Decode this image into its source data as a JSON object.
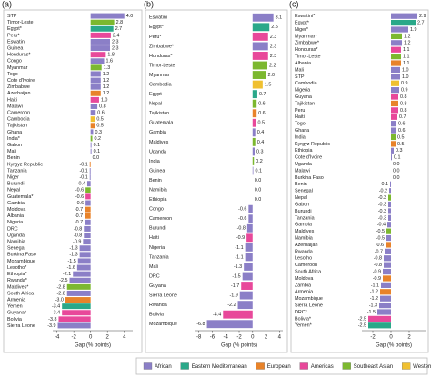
{
  "chart_data": [
    {
      "type": "bar",
      "orientation": "horizontal",
      "panel": "(a)",
      "x_label": "Gap (% points)",
      "categories": [
        "STP",
        "Timor-Leste",
        "Egypt*",
        "Peru*",
        "Eswatini",
        "Guinea",
        "Honduras*",
        "Congo",
        "Myanmar",
        "Togo",
        "Cote d'Ivoire",
        "Zimbabwe",
        "Azerbaijan",
        "Haiti",
        "Malawi",
        "Cameroon",
        "Cambodia",
        "Tajikistan",
        "Ghana",
        "India*",
        "Gabon",
        "Mali",
        "Benin",
        "Kyrgyz Republic",
        "Tanzania",
        "Niger",
        "Burundi",
        "Nepal",
        "Guatemala*",
        "Gambia",
        "Moldova",
        "Albania",
        "Nigeria",
        "DRC",
        "Uganda",
        "Namibia",
        "Senegal",
        "Burkina Faso",
        "Mozambique",
        "Lesotho*",
        "Ethiopia*",
        "Rwanda*",
        "Maldives*",
        "South Africa",
        "Armenia",
        "Yemen",
        "Guyana*",
        "Bolivia",
        "Sierra Leone"
      ],
      "values": [
        4,
        2.8,
        2.7,
        2.4,
        2.3,
        2.3,
        1.8,
        1.6,
        1.3,
        1.2,
        1.2,
        1.2,
        1.2,
        1,
        0.8,
        0.6,
        0.5,
        0.5,
        0.3,
        0.2,
        0.1,
        0.1,
        0,
        -0.1,
        -0.1,
        -0.1,
        -0.4,
        -0.6,
        -0.6,
        -0.6,
        -0.7,
        -0.7,
        -0.7,
        -0.8,
        -0.8,
        -0.9,
        -1.3,
        -1.3,
        -1.5,
        -1.6,
        -2.1,
        -2.5,
        -2.8,
        -2.8,
        -3,
        -3.4,
        -3.4,
        -3.8,
        -3.9
      ],
      "value_labels": [
        "4.0",
        "2.8",
        "2.7",
        "2.4",
        "2.3",
        "2.3",
        "1.8",
        "1.6",
        "1.3",
        "1.2",
        "1.2",
        "1.2",
        "1.2",
        "1.0",
        "0.8",
        "0.6",
        "0.5",
        "0.5",
        "0.3",
        "0.2",
        "0.1",
        "0.1",
        "0.0",
        "-0.1",
        "-0.1",
        "-0.1",
        "-0.4",
        "-0.6",
        "-0.6",
        "-0.6",
        "-0.7",
        "-0.7",
        "-0.7",
        "-0.8",
        "-0.8",
        "-0.9",
        "-1.3",
        "-1.3",
        "-1.5",
        "-1.6",
        "-2.1",
        "-2.5",
        "-2.8",
        "-2.8",
        "-3.0",
        "-3.4",
        "-3.4",
        "-3.8",
        "-3.9"
      ],
      "colors": [
        "#8b7fc7",
        "#7cb82f",
        "#2aa889",
        "#e8489a",
        "#8b7fc7",
        "#8b7fc7",
        "#e8489a",
        "#8b7fc7",
        "#7cb82f",
        "#8b7fc7",
        "#8b7fc7",
        "#8b7fc7",
        "#e8832a",
        "#e8489a",
        "#8b7fc7",
        "#8b7fc7",
        "#f0c030",
        "#e8832a",
        "#8b7fc7",
        "#7cb82f",
        "#8b7fc7",
        "#8b7fc7",
        "#8b7fc7",
        "#e8832a",
        "#8b7fc7",
        "#8b7fc7",
        "#8b7fc7",
        "#7cb82f",
        "#e8489a",
        "#8b7fc7",
        "#e8832a",
        "#e8832a",
        "#8b7fc7",
        "#8b7fc7",
        "#8b7fc7",
        "#8b7fc7",
        "#8b7fc7",
        "#8b7fc7",
        "#8b7fc7",
        "#8b7fc7",
        "#8b7fc7",
        "#8b7fc7",
        "#7cb82f",
        "#8b7fc7",
        "#e8832a",
        "#2aa889",
        "#e8489a",
        "#e8489a",
        "#8b7fc7"
      ],
      "xlim": [
        -4.5,
        5
      ],
      "xticks": [
        -4,
        -2,
        0,
        2,
        4
      ]
    },
    {
      "type": "bar",
      "orientation": "horizontal",
      "panel": "(b)",
      "x_label": "Gap (% points)",
      "categories": [
        "Eswatini",
        "Egypt*",
        "Peru*",
        "Zimbabwe*",
        "Honduras*",
        "Timor-Leste",
        "Myanmar",
        "Cambodia",
        "Egypt",
        "Nepal",
        "Tajikistan",
        "Guatemala",
        "Gambia",
        "Maldives",
        "Uganda",
        "India",
        "Guinea",
        "Benin",
        "Namibia",
        "Ethiopia",
        "Congo",
        "Cameroon",
        "Burundi",
        "Haiti",
        "Nigeria",
        "Tanzania",
        "Mali",
        "DRC",
        "Guyana",
        "Sierra Leone",
        "Rwanda",
        "Bolivia",
        "Mozambique"
      ],
      "values": [
        3.1,
        2.5,
        2.3,
        2.3,
        2.3,
        2.2,
        2,
        1.5,
        0.7,
        0.6,
        0.6,
        0.5,
        0.4,
        0.4,
        0.3,
        0.2,
        0.1,
        0,
        0,
        0,
        -0.6,
        -0.6,
        -0.8,
        -0.9,
        -1.1,
        -1.1,
        -1.3,
        -1.5,
        -1.7,
        -1.9,
        -2.2,
        -4.4,
        -6.8
      ],
      "value_labels": [
        "3.1",
        "2.5",
        "2.3",
        "2.3",
        "2.3",
        "2.2",
        "2.0",
        "1.5",
        "0.7",
        "0.6",
        "0.6",
        "0.5",
        "0.4",
        "0.4",
        "0.3",
        "0.2",
        "0.1",
        "0.0",
        "0.0",
        "0.0",
        "-0.6",
        "-0.6",
        "-0.8",
        "-0.9",
        "-1.1",
        "-1.1",
        "-1.3",
        "-1.5",
        "-1.7",
        "-1.9",
        "-2.2",
        "-4.4",
        "-6.8"
      ],
      "colors": [
        "#8b7fc7",
        "#2aa889",
        "#e8489a",
        "#8b7fc7",
        "#e8489a",
        "#7cb82f",
        "#7cb82f",
        "#f0c030",
        "#2aa889",
        "#7cb82f",
        "#e8832a",
        "#e8489a",
        "#8b7fc7",
        "#7cb82f",
        "#8b7fc7",
        "#7cb82f",
        "#8b7fc7",
        "#8b7fc7",
        "#8b7fc7",
        "#8b7fc7",
        "#8b7fc7",
        "#8b7fc7",
        "#8b7fc7",
        "#e8489a",
        "#8b7fc7",
        "#8b7fc7",
        "#8b7fc7",
        "#8b7fc7",
        "#e8489a",
        "#8b7fc7",
        "#8b7fc7",
        "#e8489a",
        "#8b7fc7"
      ],
      "xlim": [
        -8.5,
        4.5
      ],
      "xticks": [
        -8,
        -6,
        -4,
        -2,
        0,
        2,
        4
      ]
    },
    {
      "type": "bar",
      "orientation": "horizontal",
      "panel": "(c)",
      "x_label": "Gap (% points)",
      "categories": [
        "Eswatini*",
        "Egypt*",
        "Niger*",
        "Myanmar*",
        "Zimbabwe*",
        "Honduras*",
        "Timor-Leste",
        "Albania",
        "Mali",
        "STP",
        "Cambodia",
        "Nigeria",
        "Guyana",
        "Tajikistan",
        "Peru",
        "Haiti",
        "Togo",
        "Ghana",
        "India",
        "Kyrgyz Republic",
        "Ethiopia",
        "Cote d'Ivoire",
        "Uganda",
        "Malawi",
        "Burkina Faso",
        "Benin",
        "Senegal",
        "Nepal",
        "Gabon",
        "Burundi",
        "Tanzania",
        "Gambia",
        "Maldives",
        "Namibia",
        "Azerbaijan",
        "Rwanda",
        "Lesotho",
        "Cameroon",
        "South Africa",
        "Moldova",
        "Zambia",
        "Armenia",
        "Mozambique",
        "Sierra Leone",
        "DRC*",
        "Bolivia*",
        "Yemen*"
      ],
      "values": [
        2.9,
        2.7,
        1.9,
        1.2,
        1.2,
        1.1,
        1.1,
        1.1,
        1,
        1,
        0.9,
        0.9,
        0.8,
        0.8,
        0.8,
        0.7,
        0.6,
        0.6,
        0.5,
        0.5,
        0.3,
        0.1,
        0,
        0,
        0,
        -0.1,
        -0.2,
        -0.3,
        -0.3,
        -0.3,
        -0.3,
        -0.4,
        -0.5,
        -0.5,
        -0.6,
        -0.7,
        -0.8,
        -0.8,
        -0.9,
        -0.9,
        -1.1,
        -1.2,
        -1.2,
        -1.3,
        -1.5,
        -2.5,
        -2.5
      ],
      "value_labels": [
        "2.9",
        "2.7",
        "1.9",
        "1.2",
        "1.2",
        "1.1",
        "1.1",
        "1.1",
        "1.0",
        "1.0",
        "0.9",
        "0.9",
        "0.8",
        "0.8",
        "0.8",
        "0.7",
        "0.6",
        "0.6",
        "0.5",
        "0.5",
        "0.3",
        "0.1",
        "0.0",
        "0.0",
        "0.0",
        "-0.1",
        "-0.2",
        "-0.3",
        "-0.3",
        "-0.3",
        "-0.3",
        "-0.4",
        "-0.5",
        "-0.5",
        "-0.6",
        "-0.7",
        "-0.8",
        "-0.8",
        "-0.9",
        "-0.9",
        "-1.1",
        "-1.2",
        "-1.2",
        "-1.3",
        "-1.5",
        "-2.5",
        "-2.5"
      ],
      "colors": [
        "#8b7fc7",
        "#2aa889",
        "#8b7fc7",
        "#7cb82f",
        "#8b7fc7",
        "#e8489a",
        "#7cb82f",
        "#e8832a",
        "#8b7fc7",
        "#8b7fc7",
        "#f0c030",
        "#8b7fc7",
        "#e8489a",
        "#e8832a",
        "#e8489a",
        "#e8489a",
        "#8b7fc7",
        "#8b7fc7",
        "#7cb82f",
        "#e8832a",
        "#8b7fc7",
        "#8b7fc7",
        "#8b7fc7",
        "#8b7fc7",
        "#8b7fc7",
        "#8b7fc7",
        "#8b7fc7",
        "#7cb82f",
        "#8b7fc7",
        "#8b7fc7",
        "#8b7fc7",
        "#8b7fc7",
        "#7cb82f",
        "#8b7fc7",
        "#e8832a",
        "#8b7fc7",
        "#8b7fc7",
        "#8b7fc7",
        "#8b7fc7",
        "#e8832a",
        "#8b7fc7",
        "#e8832a",
        "#8b7fc7",
        "#8b7fc7",
        "#8b7fc7",
        "#e8489a",
        "#2aa889"
      ],
      "xlim": [
        -3.2,
        3.8
      ],
      "xticks": [
        -2,
        0,
        2
      ]
    }
  ],
  "legend": [
    {
      "name": "African",
      "color": "#8b7fc7"
    },
    {
      "name": "Eastern Mediterranean",
      "color": "#2aa889"
    },
    {
      "name": "European",
      "color": "#e8832a"
    },
    {
      "name": "Americas",
      "color": "#e8489a"
    },
    {
      "name": "Southeast Asian",
      "color": "#7cb82f"
    },
    {
      "name": "Western Pacific",
      "color": "#f0c030"
    }
  ]
}
